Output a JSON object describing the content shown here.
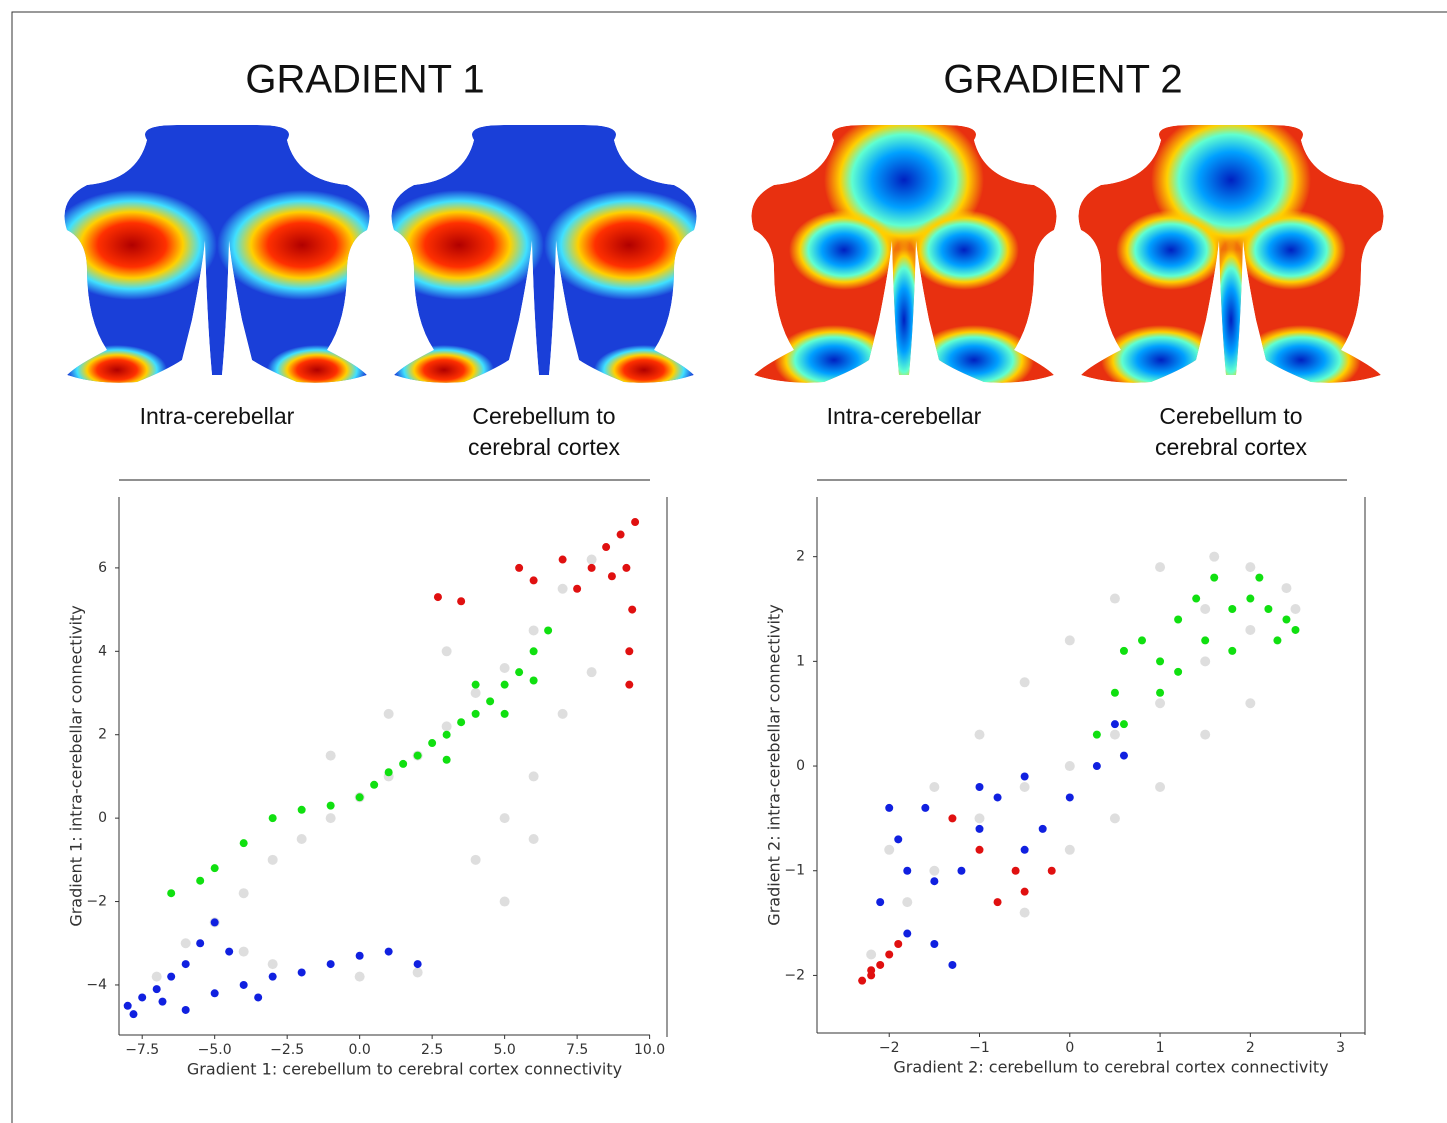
{
  "figure": {
    "columns": [
      {
        "title": "GRADIENT 1",
        "maps": [
          {
            "caption": [
              "Intra-cerebellar"
            ]
          },
          {
            "caption": [
              "Cerebellum to",
              "cerebral cortex"
            ]
          }
        ]
      },
      {
        "title": "GRADIENT 2",
        "maps": [
          {
            "caption": [
              "Intra-cerebellar"
            ]
          },
          {
            "caption": [
              "Cerebellum to",
              "cerebral cortex"
            ]
          }
        ]
      }
    ]
  },
  "chart_data": [
    {
      "type": "scatter",
      "xlabel": "Gradient 1: cerebellum to cerebral cortex connectivity",
      "ylabel": "Gradient 1: intra-cerebellar connectivity",
      "xlim": [
        -8.3,
        10.6
      ],
      "ylim": [
        -5.2,
        7.7
      ],
      "xticks": [
        {
          "value": -7.5,
          "label": "−7.5"
        },
        {
          "value": -5,
          "label": "−5.0"
        },
        {
          "value": -2.5,
          "label": "−2.5"
        },
        {
          "value": 0,
          "label": "0.0"
        },
        2.5,
        {
          "value": 5,
          "label": "5.0"
        },
        7.5,
        {
          "value": 10,
          "label": "10.0"
        }
      ],
      "yticks": [
        {
          "value": -4,
          "label": "−4"
        },
        {
          "value": -2,
          "label": "−2"
        },
        0,
        2,
        4,
        6
      ],
      "series": [
        {
          "color": "rgba(0,0,0,0.13)",
          "x": [
            -7,
            -6,
            -5,
            -4,
            -3,
            -2,
            -1,
            0,
            1,
            2,
            3,
            4,
            5,
            6,
            7,
            8,
            -3,
            0,
            2,
            4,
            5,
            6,
            7,
            8,
            1,
            -1,
            3,
            -4,
            5,
            6
          ],
          "values": [
            -3.8,
            -3,
            -2.5,
            -1.8,
            -1,
            -0.5,
            0,
            0.5,
            1,
            1.5,
            2.2,
            3,
            3.6,
            4.5,
            5.5,
            6.2,
            -3.5,
            -3.8,
            -3.7,
            -1,
            0,
            1,
            2.5,
            3.5,
            2.5,
            1.5,
            4,
            -3.2,
            -2,
            -0.5
          ]
        },
        {
          "color": "#10e010",
          "x": [
            -6.5,
            -5.5,
            -5,
            -4,
            -3,
            -2,
            -1,
            0,
            0.5,
            1,
            1.5,
            2,
            2.5,
            3,
            3.5,
            4,
            4.5,
            5,
            5.5,
            6,
            6.5,
            3,
            4,
            5,
            6
          ],
          "values": [
            -1.8,
            -1.5,
            -1.2,
            -0.6,
            0,
            0.2,
            0.3,
            0.5,
            0.8,
            1.1,
            1.3,
            1.5,
            1.8,
            2,
            2.3,
            2.5,
            2.8,
            3.2,
            3.5,
            4,
            4.5,
            1.4,
            3.2,
            2.5,
            3.3
          ]
        },
        {
          "color": "#e01010",
          "x": [
            7.5,
            8,
            8.5,
            9,
            9.5,
            9.2,
            9.4,
            9.3,
            9.3,
            8.7,
            2.7,
            3.5,
            5.5,
            6,
            7
          ],
          "values": [
            5.5,
            6,
            6.5,
            6.8,
            7.1,
            6,
            5,
            4,
            3.2,
            5.8,
            5.3,
            5.2,
            6,
            5.7,
            6.2
          ]
        },
        {
          "color": "#1020e0",
          "x": [
            -8,
            -7.5,
            -7,
            -6.5,
            -6,
            -5.5,
            -5,
            -7.8,
            -6.8,
            -5,
            -4,
            -3,
            -2,
            -1,
            0,
            1,
            2,
            -3.5,
            -6,
            -4.5
          ],
          "values": [
            -4.5,
            -4.3,
            -4.1,
            -3.8,
            -3.5,
            -3,
            -2.5,
            -4.7,
            -4.4,
            -4.2,
            -4,
            -3.8,
            -3.7,
            -3.5,
            -3.3,
            -3.2,
            -3.5,
            -4.3,
            -4.6,
            -3.2
          ]
        }
      ]
    },
    {
      "type": "scatter",
      "xlabel": "Gradient 2: cerebellum to cerebral cortex connectivity",
      "ylabel": "Gradient 2: intra-cerebellar connectivity",
      "xlim": [
        -2.8,
        3.27
      ],
      "ylim": [
        -2.55,
        2.57
      ],
      "xticks": [
        {
          "value": -2,
          "label": "−2"
        },
        {
          "value": -1,
          "label": "−1"
        },
        0,
        1,
        2,
        3
      ],
      "yticks": [
        {
          "value": -2,
          "label": "−2"
        },
        {
          "value": -1,
          "label": "−1"
        },
        0,
        1,
        2
      ],
      "series": [
        {
          "color": "rgba(0,0,0,0.13)",
          "x": [
            -2.2,
            -1.8,
            -1.5,
            -1,
            -0.5,
            0,
            0.5,
            1,
            1.5,
            2,
            2.5,
            -1,
            -0.5,
            0,
            0.5,
            1,
            1.6,
            2,
            2.4,
            0,
            0.5,
            1,
            1.5,
            2,
            -1.5,
            -2,
            -0.5,
            1.5
          ],
          "values": [
            -1.8,
            -1.3,
            -1,
            -0.5,
            -0.2,
            0,
            0.3,
            0.6,
            1,
            1.3,
            1.5,
            0.3,
            0.8,
            1.2,
            1.6,
            1.9,
            2,
            1.9,
            1.7,
            -0.8,
            -0.5,
            -0.2,
            0.3,
            0.6,
            -0.2,
            -0.8,
            -1.4,
            1.5
          ]
        },
        {
          "color": "#10e010",
          "x": [
            0.3,
            0.5,
            0.6,
            0.8,
            1,
            1.2,
            1.4,
            1.6,
            1.8,
            2,
            2.2,
            2.4,
            2.5,
            2.3,
            1.5,
            1,
            0.6,
            1.2,
            1.8,
            2.1
          ],
          "values": [
            0.3,
            0.7,
            1.1,
            1.2,
            1,
            1.4,
            1.6,
            1.8,
            1.5,
            1.6,
            1.5,
            1.4,
            1.3,
            1.2,
            1.2,
            0.7,
            0.4,
            0.9,
            1.1,
            1.8
          ]
        },
        {
          "color": "#1020e0",
          "x": [
            -2,
            -1.9,
            -2.1,
            -1.8,
            -1.5,
            -1.2,
            -1,
            -0.8,
            -0.5,
            0,
            0.3,
            0.6,
            -1.5,
            -1.3,
            -0.5,
            -1.6,
            -1,
            -0.3,
            0.5,
            -1.8
          ],
          "values": [
            -0.4,
            -0.7,
            -1.3,
            -1,
            -1.1,
            -1,
            -0.6,
            -0.3,
            -0.1,
            -0.3,
            0,
            0.1,
            -1.7,
            -1.9,
            -0.8,
            -0.4,
            -0.2,
            -0.6,
            0.4,
            -1.6
          ]
        },
        {
          "color": "#e01010",
          "x": [
            -2.3,
            -2.2,
            -2.1,
            -2,
            -1.9,
            -2.2,
            -1,
            -0.6,
            -0.2,
            -1.3,
            -0.8,
            -0.5
          ],
          "values": [
            -2.05,
            -1.95,
            -1.9,
            -1.8,
            -1.7,
            -2,
            -0.8,
            -1,
            -1,
            -0.5,
            -1.3,
            -1.2
          ]
        }
      ]
    }
  ]
}
